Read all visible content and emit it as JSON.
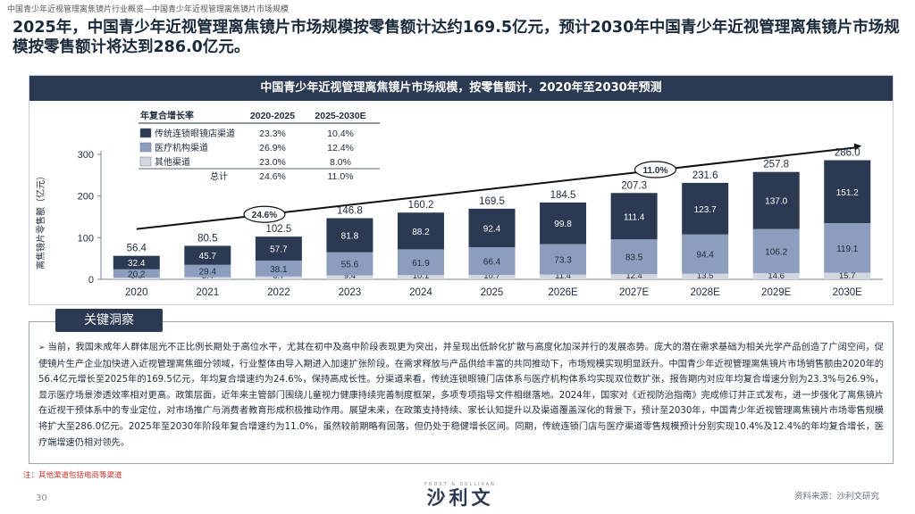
{
  "breadcrumb": "中国青少年近视管理离焦镜片行业概览—中国青少年近视管理离焦镜片市场规模",
  "headline": "2025年，中国青少年近视管理离焦镜片市场规模按零售额计达约169.5亿元，预计2030年中国青少年近视管理离焦镜片市场规模按零售额计将达到286.0亿元。",
  "chart_data": {
    "type": "bar",
    "stacked": true,
    "title": "中国青少年近视管理离焦镜片市场规模，按零售额计，2020年至2030年预测",
    "ylabel": "离焦镜片零售额（亿元）",
    "xlabel": "",
    "ylim": [
      0,
      300
    ],
    "yticks": [
      "0",
      "100",
      "200",
      "300"
    ],
    "categories": [
      "2020",
      "2021",
      "2022",
      "2023",
      "2024",
      "2025",
      "2026E",
      "2027E",
      "2028E",
      "2029E",
      "2030E"
    ],
    "series": [
      {
        "name": "其他渠道",
        "color": "#d3d8e0",
        "values": [
          3.8,
          5.4,
          6.7,
          9.4,
          10.1,
          10.7,
          11.4,
          12.4,
          13.5,
          14.6,
          15.7
        ],
        "labels": [
          "3.8",
          "5.4",
          "6.7",
          "9.4",
          "10.1",
          "10.7",
          "11.4",
          "12.4",
          "13.5",
          "14.6",
          "15.7"
        ]
      },
      {
        "name": "医疗机构渠道",
        "color": "#8c9dbd",
        "values": [
          20.2,
          29.4,
          38.1,
          55.6,
          61.9,
          66.4,
          73.3,
          83.5,
          94.4,
          106.2,
          119.1
        ],
        "labels": [
          "20.2",
          "29.4",
          "38.1",
          "55.6",
          "61.9",
          "66.4",
          "73.3",
          "83.5",
          "94.4",
          "106.2",
          "119.1"
        ]
      },
      {
        "name": "传统连锁眼镜店渠道",
        "color": "#2b3a52",
        "values": [
          32.4,
          45.7,
          57.7,
          81.8,
          88.2,
          92.4,
          99.8,
          111.4,
          123.7,
          137.0,
          151.2
        ],
        "labels": [
          "32.4",
          "45.7",
          "57.7",
          "81.8",
          "88.2",
          "92.4",
          "99.8",
          "111.4",
          "123.7",
          "137.0",
          "151.2"
        ]
      }
    ],
    "totals": [
      56.4,
      80.5,
      102.5,
      146.8,
      160.2,
      169.5,
      184.5,
      207.3,
      231.6,
      257.8,
      286.0
    ],
    "total_labels": [
      "56.4",
      "80.5",
      "102.5",
      "146.8",
      "160.2",
      "169.5",
      "184.5",
      "207.3",
      "231.6",
      "257.8",
      "286.0"
    ],
    "cagr_annotations": [
      {
        "label": "24.6%"
      },
      {
        "label": "11.0%"
      }
    ],
    "cagr_table": {
      "header": [
        "年复合增长率",
        "2020-2025",
        "2025-2030E"
      ],
      "rows": [
        {
          "name": "传统连锁眼镜店渠道",
          "color": "#2b3a52",
          "a": "23.3%",
          "b": "10.4%"
        },
        {
          "name": "医疗机构渠道",
          "color": "#8c9dbd",
          "a": "26.9%",
          "b": "12.4%"
        },
        {
          "name": "其他渠道",
          "color": "#d3d8e0",
          "a": "23.0%",
          "b": "8.0%"
        },
        {
          "name": "总计",
          "color": "",
          "a": "24.6%",
          "b": "11.0%"
        }
      ]
    }
  },
  "insights": {
    "tab_label": "关键洞察",
    "bullet": "➢",
    "text": "当前，我国未成年人群体屈光不正比例长期处于高位水平，尤其在初中及高中阶段表现更为突出，并呈现出低龄化扩散与高度化加深并行的发展态势。庞大的潜在需求基础为相关光学产品创造了广阔空间，促使镜片生产企业加快进入近视管理离焦细分领域，行业整体由导入期进入加速扩张阶段。在需求释放与产品供给丰富的共同推动下，市场规模实现明显跃升。中国青少年近视管理离焦镜片市场销售额由2020年的56.4亿元增长至2025年的169.5亿元，年均复合增速约为24.6%，保持高成长性。分渠道来看，传统连锁眼镜门店体系与医疗机构体系均实现双位数扩张，报告期内对应年均复合增速分别为23.3%与26.9%，显示医疗场景渗透效率相对更高。政策层面，近年来主管部门围绕儿童视力健康持续完善制度框架，多项专项指导文件相继落地。2024年，国家对《近视防治指南》完成修订并正式发布，进一步强化了离焦镜片在近视干预体系中的专业定位，对市场推广与消费者教育形成积极推动作用。展望未来，在政策支持持续、家长认知提升以及渠道覆盖深化的背景下，预计至2030年，中国青少年近视管理离焦镜片市场零售规模将扩大至286.0亿元。2025年至2030年阶段年复合增速约为11.0%，虽然较前期略有回落，但仍处于稳健增长区间。同期，传统连锁门店与医疗渠道零售规模预计分别实现10.4%及12.4%的年均复合增长，医疗端增速仍相对领先。"
  },
  "footer": {
    "note": "注：其他渠道包括电商等渠道",
    "page_number": "30",
    "logo_subtitle": "FROST & SULLIVAN",
    "logo_main": "沙利文",
    "source": "资料来源：沙利文研究"
  }
}
